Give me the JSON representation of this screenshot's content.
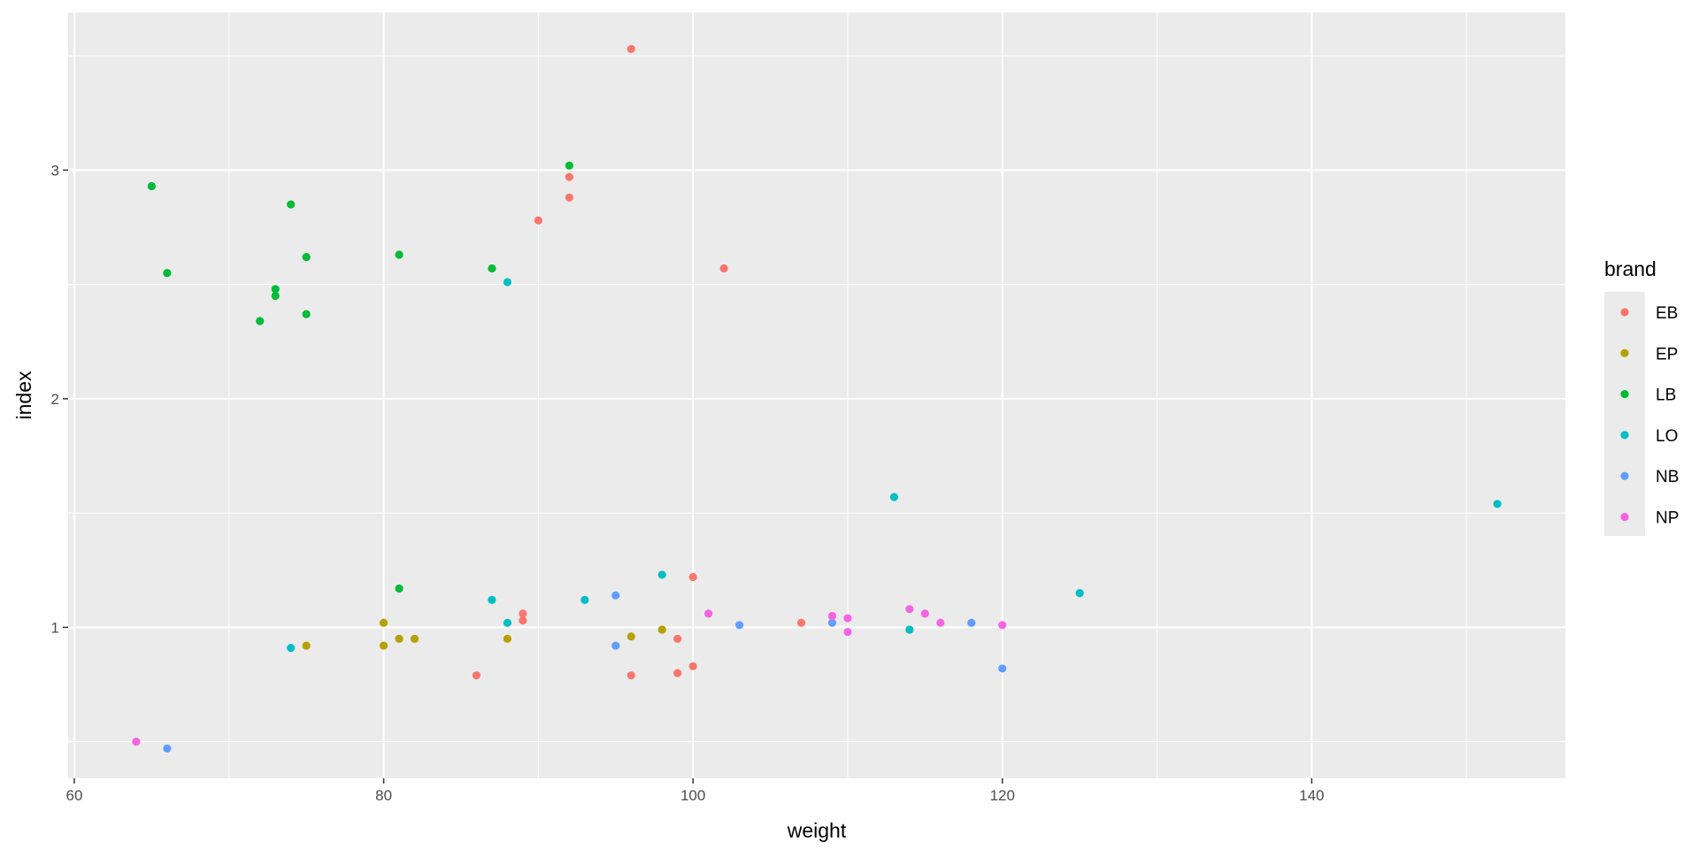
{
  "chart_data": {
    "type": "scatter",
    "xlabel": "weight",
    "ylabel": "index",
    "xlim": [
      59.6,
      156.4
    ],
    "ylim": [
      0.34,
      3.69
    ],
    "x_ticks": [
      60,
      80,
      100,
      120,
      140
    ],
    "x_minor_ticks": [
      70,
      90,
      110,
      130,
      150
    ],
    "y_ticks": [
      1,
      2,
      3
    ],
    "y_minor_ticks": [
      0.5,
      1.5,
      2.5,
      3.5
    ],
    "grid": true,
    "background": "#ebebeb",
    "legend": {
      "title": "brand",
      "position": "right",
      "background": "#ebebeb"
    },
    "series": [
      {
        "name": "EB",
        "color": "#F8766D",
        "points": [
          [
            96,
            3.53
          ],
          [
            92,
            2.97
          ],
          [
            92,
            2.88
          ],
          [
            90,
            2.78
          ],
          [
            102,
            2.57
          ],
          [
            100,
            1.22
          ],
          [
            89,
            1.06
          ],
          [
            89,
            1.03
          ],
          [
            107,
            1.02
          ],
          [
            99,
            0.95
          ],
          [
            100,
            0.83
          ],
          [
            99,
            0.8
          ],
          [
            86,
            0.79
          ],
          [
            96,
            0.79
          ]
        ]
      },
      {
        "name": "EP",
        "color": "#B79F00",
        "points": [
          [
            80,
            1.02
          ],
          [
            81,
            0.95
          ],
          [
            82,
            0.95
          ],
          [
            88,
            0.95
          ],
          [
            80,
            0.92
          ],
          [
            75,
            0.92
          ],
          [
            96,
            0.96
          ],
          [
            98,
            0.99
          ]
        ]
      },
      {
        "name": "LB",
        "color": "#00BA38",
        "points": [
          [
            65,
            2.93
          ],
          [
            74,
            2.85
          ],
          [
            66,
            2.55
          ],
          [
            73,
            2.48
          ],
          [
            73,
            2.45
          ],
          [
            72,
            2.34
          ],
          [
            75,
            2.62
          ],
          [
            75,
            2.37
          ],
          [
            81,
            2.63
          ],
          [
            87,
            2.57
          ],
          [
            92,
            3.02
          ],
          [
            81,
            1.17
          ]
        ]
      },
      {
        "name": "LO",
        "color": "#00BFC4",
        "points": [
          [
            88,
            2.51
          ],
          [
            113,
            1.57
          ],
          [
            152,
            1.54
          ],
          [
            98,
            1.23
          ],
          [
            125,
            1.15
          ],
          [
            87,
            1.12
          ],
          [
            93,
            1.12
          ],
          [
            88,
            1.02
          ],
          [
            114,
            0.99
          ],
          [
            74,
            0.91
          ]
        ]
      },
      {
        "name": "NB",
        "color": "#619CFF",
        "points": [
          [
            95,
            1.14
          ],
          [
            103,
            1.01
          ],
          [
            109,
            1.02
          ],
          [
            118,
            1.02
          ],
          [
            95,
            0.92
          ],
          [
            120,
            0.82
          ],
          [
            66,
            0.47
          ]
        ]
      },
      {
        "name": "NP",
        "color": "#F564E3",
        "points": [
          [
            101,
            1.06
          ],
          [
            109,
            1.05
          ],
          [
            110,
            1.04
          ],
          [
            114,
            1.08
          ],
          [
            115,
            1.06
          ],
          [
            116,
            1.02
          ],
          [
            120,
            1.01
          ],
          [
            110,
            0.98
          ],
          [
            64,
            0.5
          ]
        ]
      }
    ]
  }
}
